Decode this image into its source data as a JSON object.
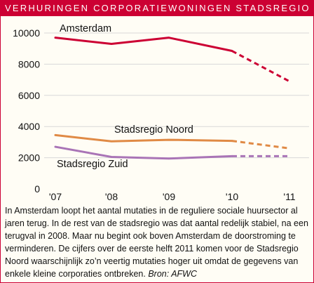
{
  "chart_data": {
    "type": "line",
    "title": "VERHURINGEN CORPORATIEWONINGEN STADSREGIO",
    "x": [
      "'07",
      "'08",
      "'09",
      "'10",
      "'11"
    ],
    "yticks": [
      0,
      2000,
      4000,
      6000,
      8000,
      10000
    ],
    "ylim": [
      0,
      10000
    ],
    "grid": true,
    "series": [
      {
        "name": "Amsterdam",
        "values": [
          9700,
          9300,
          9700,
          8850,
          6900
        ],
        "color": "#cc0033",
        "dashed_from_index": 3
      },
      {
        "name": "Stadsregio Noord",
        "values": [
          3450,
          3050,
          3150,
          3080,
          2600
        ],
        "color": "#e08a45",
        "dashed_from_index": 3
      },
      {
        "name": "Stadsregio Zuid",
        "values": [
          2700,
          2050,
          1950,
          2100,
          2100
        ],
        "color": "#a974b6",
        "dashed_from_index": 3
      }
    ]
  },
  "caption": {
    "text": "In Amsterdam loopt het aantal mutaties in de reguliere sociale huursector al jaren terug. In de rest van de stadsregio was dat aantal redelijk stabiel, na een terugval in 2008. Maar nu begint ook boven Amsterdam de doorstroming te verminderen. De cijfers over de eerste helft 2011 komen voor de Stadsregio Noord waarschijnlijk zo’n veertig mutaties hoger uit omdat de gegevens van enkele kleine corporaties ontbreken.",
    "source": "Bron: AFWC"
  }
}
